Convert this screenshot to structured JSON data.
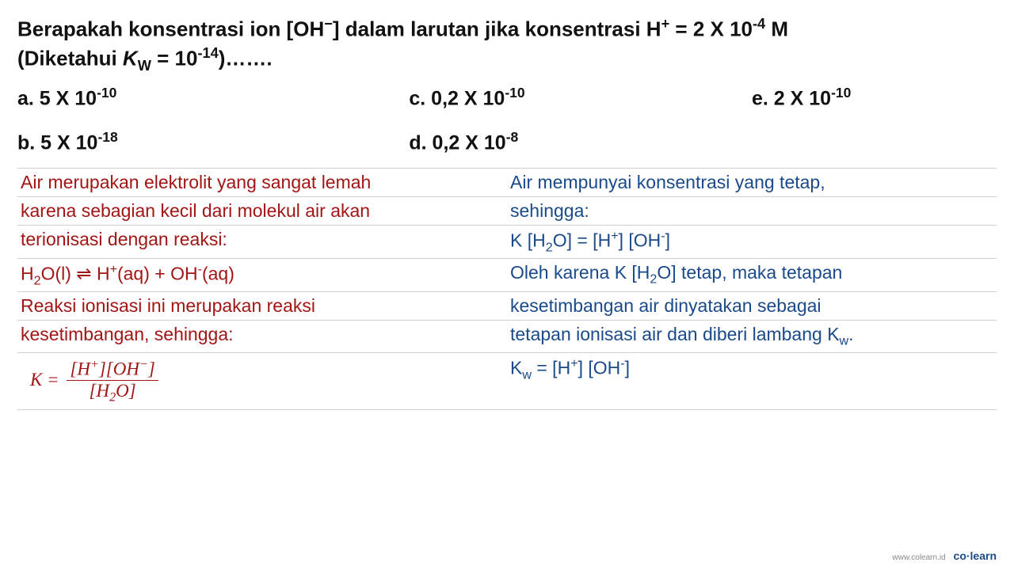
{
  "question": {
    "line1_pre": "Berapakah konsentrasi ion [OH",
    "line1_sup1": "−",
    "line1_mid": "] dalam larutan jika konsentrasi H",
    "line1_sup2": "+",
    "line1_eq": " = 2 X 10",
    "line1_sup3": "-4",
    "line1_end": " M",
    "line2_pre": "(Diketahui ",
    "line2_k": "K",
    "line2_w": "W",
    "line2_eq": " = 10",
    "line2_sup": "-14",
    "line2_end": ")……."
  },
  "options": {
    "a_pre": "a. 5 X 10",
    "a_sup": "-10",
    "c_pre": "c. 0,2 X 10",
    "c_sup": "-10",
    "e_pre": "e. 2 X 10",
    "e_sup": "-10",
    "b_pre": "b. 5 X 10",
    "b_sup": "-18",
    "d_pre": "d. 0,2 X 10",
    "d_sup": "-8"
  },
  "left": {
    "r1": "Air merupakan elektrolit yang sangat lemah",
    "r2": "karena sebagian kecil dari molekul air akan",
    "r3": "terionisasi dengan reaksi:",
    "r4_h2o": "H",
    "r4_2": "2",
    "r4_mid": "O(l) ⇌ H",
    "r4_plus": "+",
    "r4_aq1": "(aq) + OH",
    "r4_minus": "-",
    "r4_aq2": "(aq)",
    "r5": "Reaksi ionisasi ini merupakan reaksi",
    "r6": "kesetimbangan, sehingga:",
    "r7_k": "K",
    "r7_eq": " = ",
    "r7_num_open": "[",
    "r7_num_h": "H",
    "r7_num_plus": "+",
    "r7_num_mid": "][",
    "r7_num_oh": "OH",
    "r7_num_minus": "−",
    "r7_num_close": "]",
    "r7_den_open": "[",
    "r7_den_h": "H",
    "r7_den_2": "2",
    "r7_den_o": "O",
    "r7_den_close": "]"
  },
  "right": {
    "r1": "Air mempunyai konsentrasi yang tetap,",
    "r2": "sehingga:",
    "r3_pre": "K [H",
    "r3_2": "2",
    "r3_mid": "O] = [H",
    "r3_plus": "+",
    "r3_mid2": "] [OH",
    "r3_minus": "-",
    "r3_end": "]",
    "r4_pre": "Oleh karena K [H",
    "r4_2": "2",
    "r4_end": "O] tetap, maka tetapan",
    "r5": "kesetimbangan air dinyatakan sebagai",
    "r6_pre": "tetapan ionisasi air dan diberi lambang K",
    "r6_w": "w",
    "r6_end": ".",
    "r7_pre": "K",
    "r7_w": "w",
    "r7_eq": " = [H",
    "r7_plus": "+",
    "r7_mid": "] [OH",
    "r7_minus": "-",
    "r7_end": "]"
  },
  "footer": {
    "url": "www.colearn.id",
    "brand": "co·learn"
  },
  "colors": {
    "question": "#111111",
    "left": "#a31515",
    "right": "#1a4a8a",
    "rule": "#d0d0d0",
    "brand": "#1a4a8a"
  }
}
